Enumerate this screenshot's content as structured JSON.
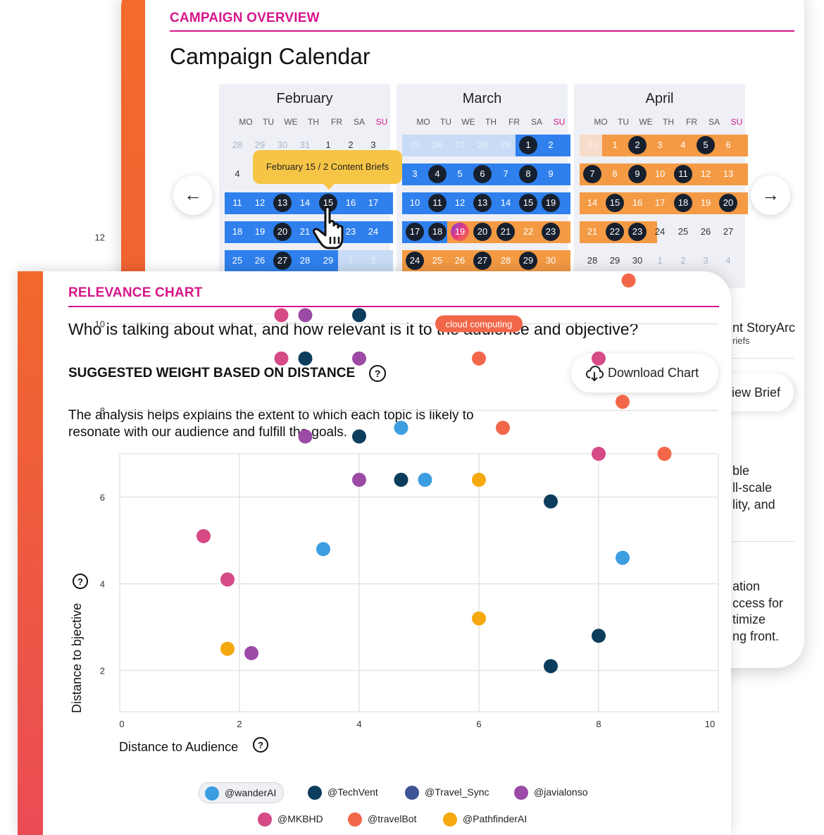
{
  "calendar_card": {
    "section_label": "CAMPAIGN OVERVIEW",
    "title": "Campaign Calendar",
    "tooltip": "February 15 / 2 Content Briefs",
    "prev_arrow": "←",
    "next_arrow": "→",
    "weekday_labels": [
      "MO",
      "TU",
      "WE",
      "TH",
      "FR",
      "SA",
      "SU"
    ],
    "months": [
      {
        "name": "February",
        "rows": [
          [
            "28",
            "29",
            "30",
            "31",
            "1",
            "2",
            "3"
          ],
          [
            "4",
            "5",
            "6",
            "7",
            "8",
            "9",
            "10"
          ],
          [
            "11",
            "12",
            "13",
            "14",
            "15",
            "16",
            "17"
          ],
          [
            "18",
            "19",
            "20",
            "21",
            "22",
            "23",
            "24"
          ],
          [
            "25",
            "26",
            "27",
            "28",
            "29",
            "1",
            "2"
          ]
        ]
      },
      {
        "name": "March",
        "rows": [
          [
            "25",
            "26",
            "27",
            "28",
            "29",
            "1",
            "2"
          ],
          [
            "3",
            "4",
            "5",
            "6",
            "7",
            "8",
            "9"
          ],
          [
            "10",
            "11",
            "12",
            "13",
            "14",
            "15",
            "19"
          ],
          [
            "17",
            "18",
            "19",
            "20",
            "21",
            "22",
            "23"
          ],
          [
            "24",
            "25",
            "26",
            "27",
            "28",
            "29",
            "30"
          ]
        ]
      },
      {
        "name": "April",
        "rows": [
          [
            "31",
            "1",
            "2",
            "3",
            "4",
            "5",
            "6"
          ],
          [
            "7",
            "8",
            "9",
            "10",
            "11",
            "12",
            "13"
          ],
          [
            "14",
            "15",
            "16",
            "17",
            "18",
            "19",
            "20"
          ],
          [
            "21",
            "22",
            "23",
            "24",
            "25",
            "26",
            "27"
          ],
          [
            "28",
            "29",
            "30",
            "1",
            "2",
            "3",
            "4"
          ]
        ]
      }
    ],
    "partial_text": {
      "line1": "nt StoryArc",
      "line2": "riefs",
      "button": "iew Brief",
      "p1": [
        "ble",
        "ll-scale",
        "lity, and"
      ],
      "p2": [
        "ation",
        "ccess for",
        "timize",
        "ng front."
      ]
    }
  },
  "relevance_card": {
    "section_label": "RELEVANCE CHART",
    "question": "Who is talking about what, and how relevant is it to the audience and objective?",
    "subheading": "SUGGESTED WEIGHT BASED ON DISTANCE",
    "download_label": "Download Chart",
    "description": "The analysis helps explains the extent to which each topic is likely to resonate with our audience and fulfill the goals.",
    "help_glyph": "?"
  },
  "colors": {
    "accent_magenta": "#d6168a",
    "blue_band": "#2f80ed",
    "light_band": "#c9dcf5",
    "orange_band": "#f49a44",
    "dark_circle": "#17202e"
  },
  "chart_data": {
    "type": "scatter",
    "xlabel": "Distance to Audience",
    "ylabel": "Distance to bjective",
    "xlim": [
      0,
      10
    ],
    "ylim": [
      0,
      12
    ],
    "x_ticks": [
      "0",
      "2",
      "4",
      "6",
      "8",
      "10"
    ],
    "y_ticks": [
      "2",
      "4",
      "6",
      "8",
      "10",
      "12"
    ],
    "grid": true,
    "annotation": {
      "text": "cloud computing",
      "x": 6.0,
      "y": 9.5
    },
    "legend_position": "bottom",
    "series": [
      {
        "name": "@wanderAI",
        "color": "#3c9de0",
        "points": [
          [
            4.7,
            7.6
          ],
          [
            5.1,
            6.4
          ],
          [
            3.4,
            4.8
          ],
          [
            8.4,
            4.6
          ]
        ]
      },
      {
        "name": "@TechVent",
        "color": "#0c3d5c",
        "points": [
          [
            4.0,
            10.2
          ],
          [
            3.1,
            9.2
          ],
          [
            4.0,
            7.4
          ],
          [
            4.7,
            6.4
          ],
          [
            7.2,
            5.9
          ],
          [
            8.0,
            2.8
          ],
          [
            7.2,
            2.1
          ]
        ]
      },
      {
        "name": "@Travel_Sync",
        "color": "#3f5494",
        "points": []
      },
      {
        "name": "@javialonso",
        "color": "#9b4aa6",
        "points": [
          [
            3.1,
            10.2
          ],
          [
            4.0,
            9.2
          ],
          [
            3.1,
            7.4
          ],
          [
            4.0,
            6.4
          ],
          [
            2.2,
            2.4
          ]
        ]
      },
      {
        "name": "@MKBHD",
        "color": "#d64a86",
        "points": [
          [
            2.7,
            10.2
          ],
          [
            2.7,
            9.2
          ],
          [
            8.0,
            9.2
          ],
          [
            8.0,
            7.0
          ],
          [
            1.4,
            5.1
          ],
          [
            1.8,
            4.1
          ]
        ]
      },
      {
        "name": "@travelBot",
        "color": "#f2674a",
        "points": [
          [
            8.5,
            11.0
          ],
          [
            6.0,
            9.2
          ],
          [
            8.4,
            8.2
          ],
          [
            6.4,
            7.6
          ],
          [
            9.1,
            7.0
          ]
        ]
      },
      {
        "name": "@PathfinderAI",
        "color": "#f5a90f",
        "points": [
          [
            6.0,
            6.4
          ],
          [
            6.0,
            3.2
          ],
          [
            1.8,
            2.5
          ]
        ]
      }
    ]
  }
}
